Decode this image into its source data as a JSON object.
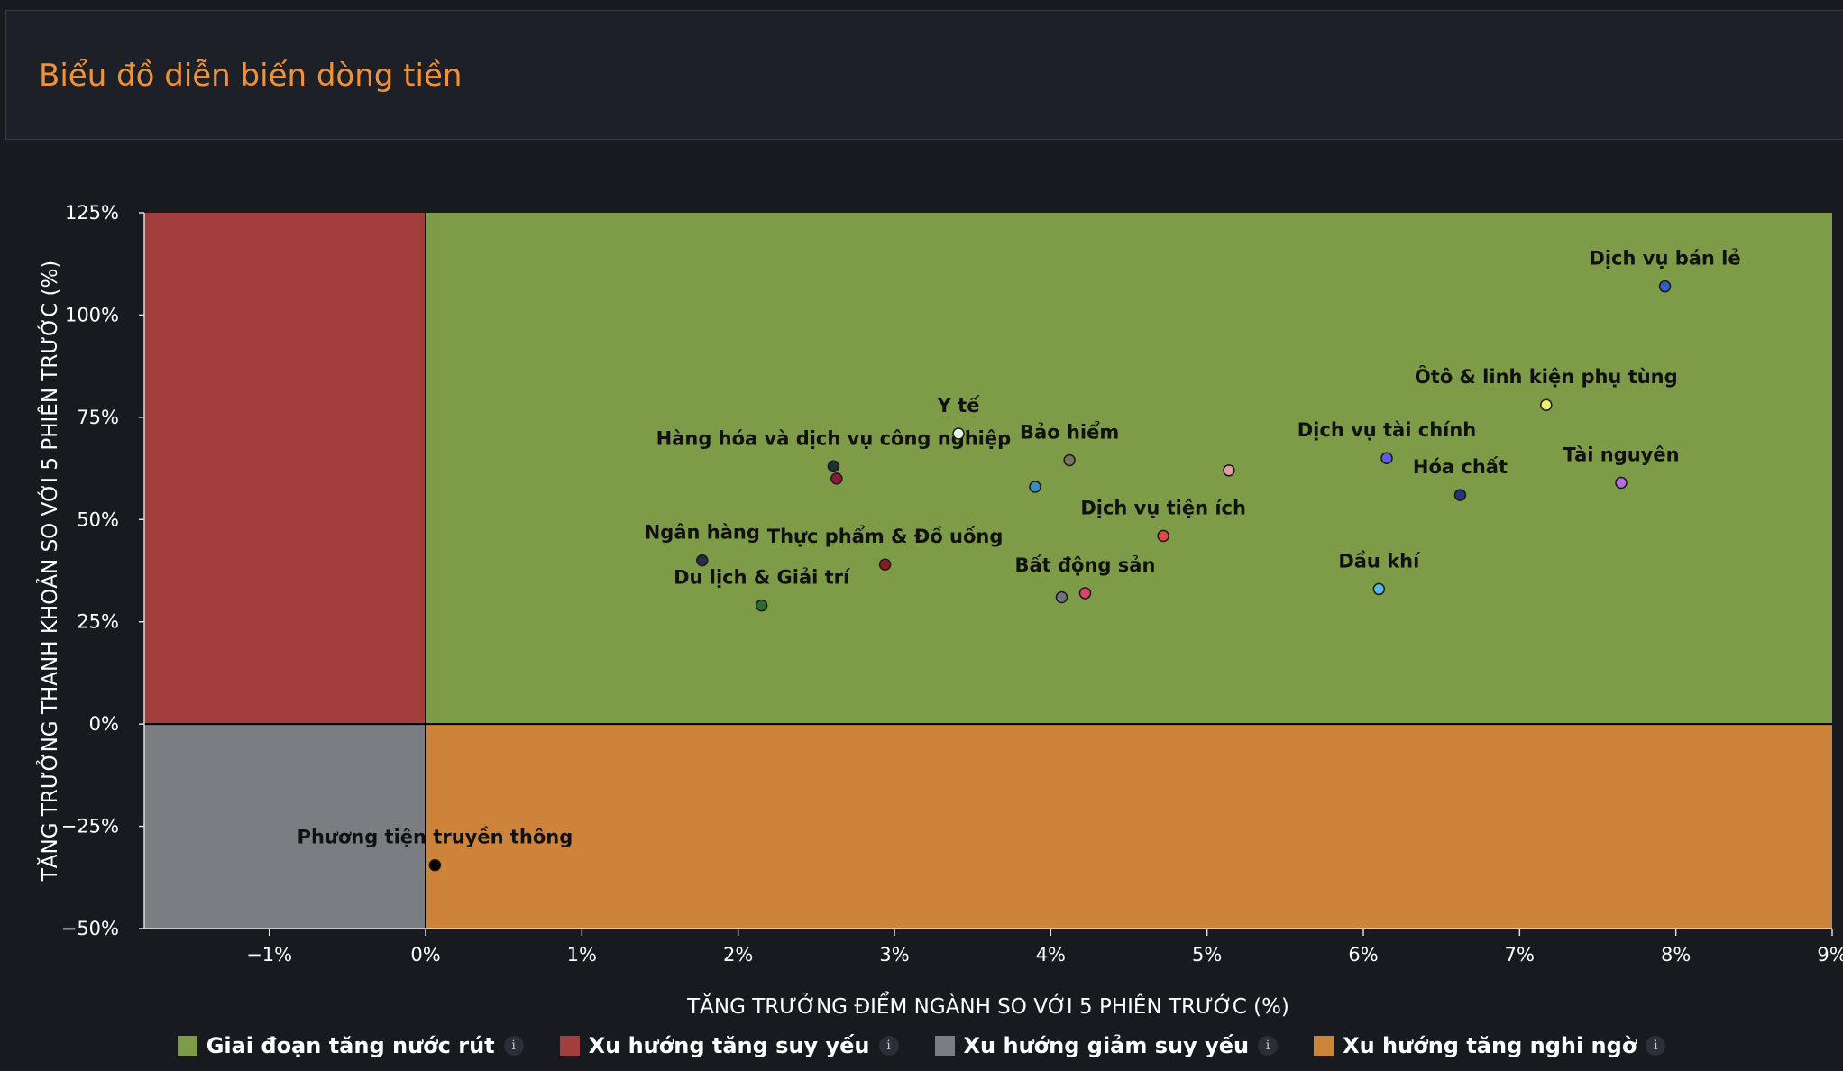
{
  "header": {
    "title": "Biểu đồ diễn biến dòng tiền"
  },
  "chart_data": {
    "type": "scatter",
    "title": "Biểu đồ diễn biến dòng tiền",
    "xlabel": "TĂNG TRƯỞNG ĐIỂM NGÀNH SO VỚI 5 PHIÊN TRƯỚC (%)",
    "ylabel": "TĂNG TRƯỞNG THANH KHOẢN SO VỚI 5 PHIÊN TRƯỚC (%)",
    "xlim": [
      -1.8,
      9
    ],
    "ylim": [
      -50,
      125
    ],
    "x_ticks": [
      -1,
      0,
      1,
      2,
      3,
      4,
      5,
      6,
      7,
      8,
      9
    ],
    "x_tick_labels": [
      "−1%",
      "0%",
      "1%",
      "2%",
      "3%",
      "4%",
      "5%",
      "6%",
      "7%",
      "8%",
      "9%"
    ],
    "y_ticks": [
      125,
      100,
      75,
      50,
      25,
      0,
      -25,
      -50
    ],
    "y_tick_labels": [
      "125%",
      "100%",
      "75%",
      "50%",
      "25%",
      "0%",
      "−25%",
      "−50%"
    ],
    "quadrants": [
      {
        "name": "Giai đoạn tăng nước rút",
        "region": "x>=0, y>=0",
        "color": "#7e9b48"
      },
      {
        "name": "Xu hướng tăng suy yếu",
        "region": "x<0, y>=0",
        "color": "#a23f3c"
      },
      {
        "name": "Xu hướng giảm suy yếu",
        "region": "x<0, y<0",
        "color": "#7c7d82"
      },
      {
        "name": "Xu hướng tăng nghi ngờ",
        "region": "x>=0, y<0",
        "color": "#cd843a"
      }
    ],
    "points": [
      {
        "label": "Dịch vụ bán lẻ",
        "x": 7.93,
        "y": 107,
        "color": "#2f5fc8"
      },
      {
        "label": "Ôtô & linh kiện phụ tùng",
        "x": 7.17,
        "y": 78,
        "color": "#f1f06a"
      },
      {
        "label": "Dịch vụ tài chính",
        "x": 6.15,
        "y": 65,
        "color": "#5a5ee0"
      },
      {
        "label": "Tài nguyên",
        "x": 7.65,
        "y": 59,
        "color": "#b66ce0"
      },
      {
        "label": "Hóa chất",
        "x": 6.62,
        "y": 56,
        "color": "#27357f"
      },
      {
        "label": "Dầu khí",
        "x": 6.1,
        "y": 33,
        "color": "#54b9e6"
      },
      {
        "label": "",
        "x": 5.14,
        "y": 62,
        "color": "#e59aa5"
      },
      {
        "label": "Dịch vụ tiện ích",
        "x": 4.72,
        "y": 46,
        "color": "#d94b44"
      },
      {
        "label": "Bất động sản",
        "x": 4.22,
        "y": 32,
        "color": "#d8446e"
      },
      {
        "label": "",
        "x": 4.07,
        "y": 31,
        "color": "#707080"
      },
      {
        "label": "Bảo hiểm",
        "x": 4.12,
        "y": 64.5,
        "color": "#7b6f5e"
      },
      {
        "label": "",
        "x": 3.9,
        "y": 58,
        "color": "#3d8ec0"
      },
      {
        "label": "Y tế",
        "x": 3.41,
        "y": 71,
        "color": "#e6f5df"
      },
      {
        "label": "Hàng hóa và dịch vụ công nghiệp",
        "x": 2.61,
        "y": 63,
        "color": "#20302a"
      },
      {
        "label": "",
        "x": 2.63,
        "y": 60,
        "color": "#8a1c3c"
      },
      {
        "label": "Thực phẩm & Đồ uống",
        "x": 2.94,
        "y": 39,
        "color": "#8a1c1c"
      },
      {
        "label": "Ngân hàng",
        "x": 1.77,
        "y": 40,
        "color": "#2a2a4a"
      },
      {
        "label": "Du lịch & Giải trí",
        "x": 2.15,
        "y": 29,
        "color": "#2f6a2e"
      },
      {
        "label": "Phương tiện truyền thông",
        "x": 0.06,
        "y": -34.5,
        "color": "#000000"
      }
    ]
  },
  "legend": {
    "items": [
      {
        "label": "Giai đoạn tăng nước rút",
        "color": "#7e9b48",
        "info": "i"
      },
      {
        "label": "Xu hướng tăng suy yếu",
        "color": "#a23f3c",
        "info": "i"
      },
      {
        "label": "Xu hướng giảm suy yếu",
        "color": "#7c7d82",
        "info": "i"
      },
      {
        "label": "Xu hướng tăng nghi ngờ",
        "color": "#cd843a",
        "info": "i"
      }
    ]
  }
}
